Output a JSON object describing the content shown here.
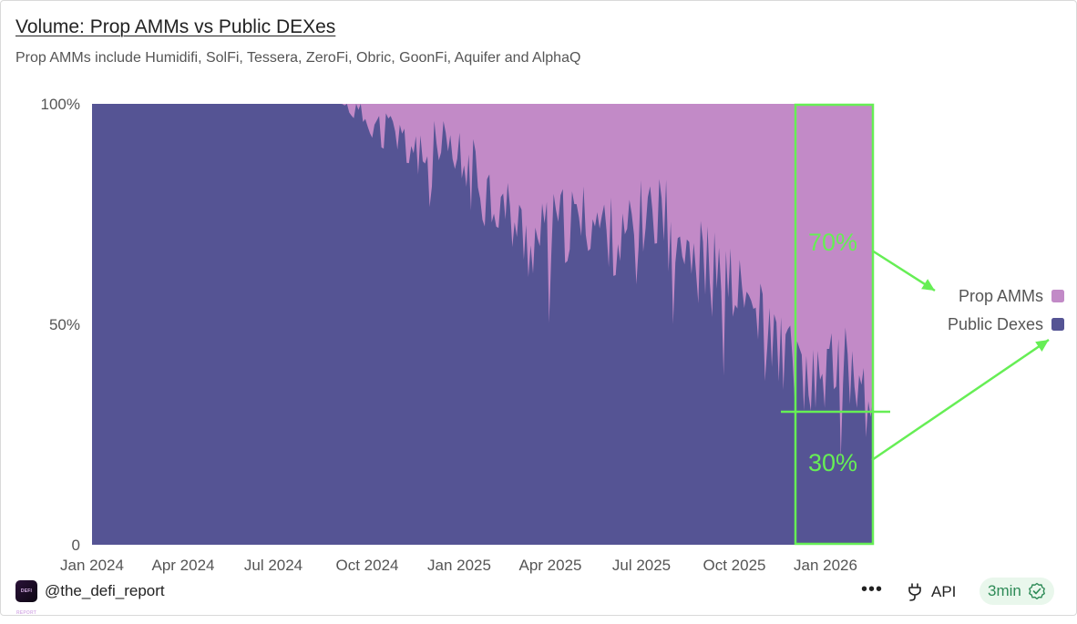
{
  "header": {
    "title": "Volume: Prop AMMs vs Public DEXes",
    "subtitle": "Prop AMMs include Humidifi, SolFi, Tessera, ZeroFi, Obric, GoonFi, Aquifer and AlphaQ"
  },
  "annotations": {
    "top_pct": "70%",
    "bottom_pct": "30%"
  },
  "footer": {
    "handle": "@the_defi_report",
    "logo_text": "DEFI REPORT",
    "more_label": "•••",
    "api_label": "API",
    "refresh_label": "3min"
  },
  "colors": {
    "prop_amms": "#c28ac7",
    "public_dexes": "#555494",
    "highlight": "#66ee55",
    "axis_text": "#555555"
  },
  "icons": {
    "api": "plug-icon",
    "refresh": "check-badge-icon",
    "more": "more-dots-icon"
  },
  "chart_data": {
    "type": "area",
    "stacked": "percent",
    "title": "Volume: Prop AMMs vs Public DEXes",
    "xlabel": "",
    "ylabel": "",
    "ylim": [
      0,
      100
    ],
    "y_ticks": [
      "0",
      "50%",
      "100%"
    ],
    "x_ticks": [
      "Jan 2024",
      "Apr 2024",
      "Jul 2024",
      "Oct 2024",
      "Jan 2025",
      "Apr 2025",
      "Jul 2025",
      "Oct 2025",
      "Jan 2026"
    ],
    "legend_position": "right",
    "x": [
      "2024-01",
      "2024-02",
      "2024-03",
      "2024-04",
      "2024-05",
      "2024-06",
      "2024-07",
      "2024-08",
      "2024-09",
      "2024-10",
      "2024-11",
      "2024-12",
      "2025-01",
      "2025-02",
      "2025-03",
      "2025-04",
      "2025-05",
      "2025-06",
      "2025-07",
      "2025-08",
      "2025-09",
      "2025-10",
      "2025-11",
      "2025-12",
      "2026-01",
      "2026-02"
    ],
    "series": [
      {
        "name": "Public Dexes",
        "values": [
          100,
          100,
          100,
          100,
          100,
          100,
          100,
          100,
          100,
          96,
          91,
          88,
          85,
          78,
          68,
          72,
          74,
          68,
          78,
          70,
          62,
          55,
          45,
          36,
          42,
          31
        ]
      },
      {
        "name": "Prop AMMs",
        "values": [
          0,
          0,
          0,
          0,
          0,
          0,
          0,
          0,
          0,
          4,
          9,
          12,
          15,
          22,
          32,
          28,
          26,
          32,
          22,
          30,
          38,
          45,
          55,
          64,
          58,
          69
        ]
      }
    ]
  }
}
